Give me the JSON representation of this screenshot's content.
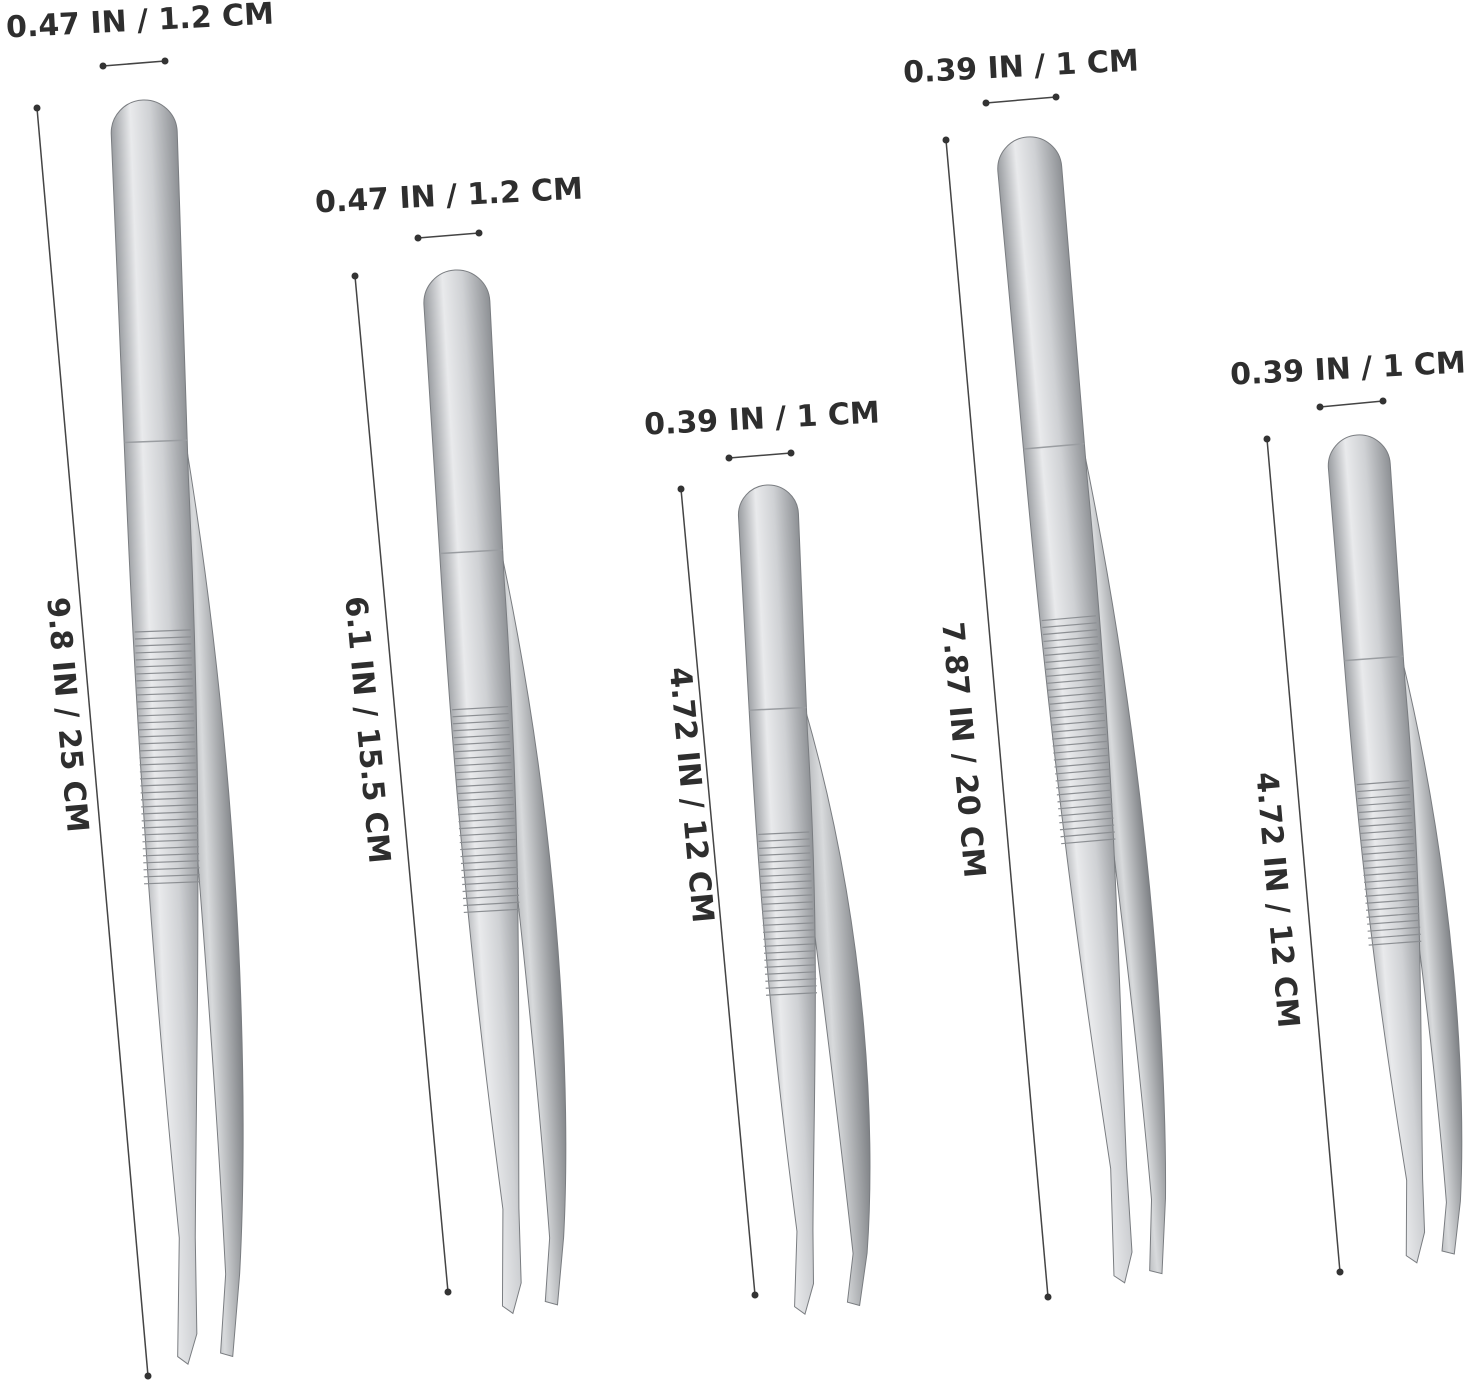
{
  "items": [
    {
      "width_label": "0.47 IN / 1.2 CM",
      "length_label": "9.8 IN / 25 CM"
    },
    {
      "width_label": "0.47 IN / 1.2 CM",
      "length_label": "6.1 IN / 15.5 CM"
    },
    {
      "width_label": "0.39 IN / 1 CM",
      "length_label": "4.72 IN / 12 CM"
    },
    {
      "width_label": "0.39 IN / 1 CM",
      "length_label": "7.87 IN / 20 CM"
    },
    {
      "width_label": "0.39 IN / 1 CM",
      "length_label": "4.72 IN / 12 CM"
    }
  ]
}
